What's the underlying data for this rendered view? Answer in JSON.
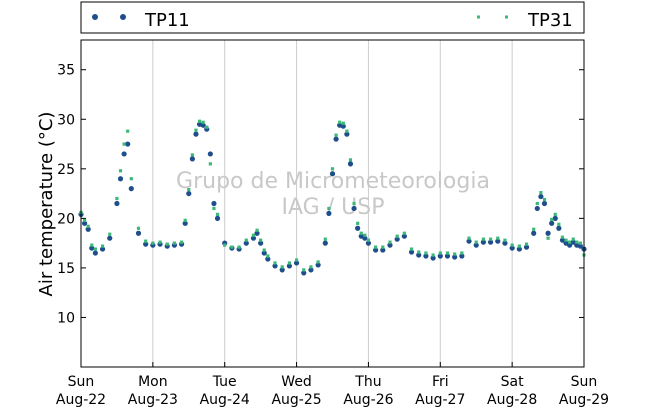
{
  "chart_data": {
    "type": "scatter",
    "title": "",
    "xlabel": "",
    "ylabel": "Air temperature (°C)",
    "watermark": [
      "Grupo de Micrometeorologia",
      "IAG / USP"
    ],
    "xlim": [
      0,
      7
    ],
    "ylim": [
      5,
      38
    ],
    "yticks": [
      10,
      15,
      20,
      25,
      30,
      35
    ],
    "grid": "x",
    "legend_position": "top",
    "xticks": [
      {
        "day": "Sun",
        "date": "Aug-22",
        "x": 0
      },
      {
        "day": "Mon",
        "date": "Aug-23",
        "x": 1
      },
      {
        "day": "Tue",
        "date": "Aug-24",
        "x": 2
      },
      {
        "day": "Wed",
        "date": "Aug-25",
        "x": 3
      },
      {
        "day": "Thu",
        "date": "Aug-26",
        "x": 4
      },
      {
        "day": "Fri",
        "date": "Aug-27",
        "x": 5
      },
      {
        "day": "Sat",
        "date": "Aug-28",
        "x": 6
      },
      {
        "day": "Sun",
        "date": "Aug-29",
        "x": 7
      }
    ],
    "series": [
      {
        "name": "TP11",
        "color": "#1f4e8c",
        "marker": "circle",
        "x": [
          0,
          0.05,
          0.1,
          0.15,
          0.2,
          0.3,
          0.4,
          0.5,
          0.55,
          0.6,
          0.65,
          0.7,
          0.8,
          0.9,
          1.0,
          1.1,
          1.2,
          1.3,
          1.4,
          1.45,
          1.5,
          1.55,
          1.6,
          1.65,
          1.7,
          1.75,
          1.8,
          1.85,
          1.9,
          2.0,
          2.1,
          2.2,
          2.3,
          2.4,
          2.45,
          2.5,
          2.55,
          2.6,
          2.7,
          2.8,
          2.9,
          3.0,
          3.1,
          3.2,
          3.3,
          3.4,
          3.45,
          3.5,
          3.55,
          3.6,
          3.65,
          3.7,
          3.75,
          3.8,
          3.85,
          3.9,
          3.95,
          4.0,
          4.1,
          4.2,
          4.3,
          4.4,
          4.5,
          4.6,
          4.7,
          4.8,
          4.9,
          5.0,
          5.1,
          5.2,
          5.3,
          5.4,
          5.5,
          5.6,
          5.7,
          5.8,
          5.9,
          6.0,
          6.1,
          6.2,
          6.3,
          6.35,
          6.4,
          6.45,
          6.5,
          6.55,
          6.6,
          6.65,
          6.7,
          6.75,
          6.8,
          6.85,
          6.9,
          6.95,
          7.0
        ],
        "y": [
          20.4,
          19.5,
          18.9,
          17.0,
          16.5,
          16.9,
          18.0,
          21.5,
          24.0,
          26.5,
          27.5,
          23.0,
          18.5,
          17.4,
          17.3,
          17.4,
          17.2,
          17.3,
          17.4,
          19.5,
          22.5,
          26.0,
          28.5,
          29.5,
          29.4,
          29.0,
          26.5,
          21.5,
          20.0,
          17.5,
          17.0,
          16.9,
          17.5,
          18.0,
          18.5,
          17.5,
          16.5,
          15.9,
          15.2,
          14.8,
          15.2,
          15.5,
          14.5,
          14.8,
          15.3,
          17.5,
          20.5,
          24.5,
          28.0,
          29.4,
          29.3,
          28.5,
          25.5,
          21.0,
          19.0,
          18.2,
          18.0,
          17.5,
          16.8,
          16.8,
          17.3,
          17.9,
          18.2,
          16.6,
          16.3,
          16.2,
          16.0,
          16.2,
          16.2,
          16.1,
          16.2,
          17.7,
          17.3,
          17.6,
          17.6,
          17.7,
          17.5,
          17.0,
          16.9,
          17.1,
          18.5,
          21.0,
          22.2,
          21.5,
          18.5,
          19.5,
          20.0,
          19.0,
          17.8,
          17.5,
          17.3,
          17.6,
          17.3,
          17.2,
          16.9
        ]
      },
      {
        "name": "TP31",
        "color": "#3cb878",
        "marker": "square",
        "x": [
          0,
          0.05,
          0.1,
          0.15,
          0.2,
          0.3,
          0.4,
          0.5,
          0.55,
          0.6,
          0.65,
          0.7,
          0.8,
          0.9,
          1.0,
          1.1,
          1.2,
          1.3,
          1.4,
          1.45,
          1.5,
          1.55,
          1.6,
          1.65,
          1.7,
          1.75,
          1.8,
          1.85,
          1.9,
          2.0,
          2.1,
          2.2,
          2.3,
          2.4,
          2.45,
          2.5,
          2.55,
          2.6,
          2.7,
          2.8,
          2.9,
          3.0,
          3.1,
          3.2,
          3.3,
          3.4,
          3.45,
          3.5,
          3.55,
          3.6,
          3.65,
          3.7,
          3.75,
          3.8,
          3.85,
          3.9,
          3.95,
          4.0,
          4.1,
          4.2,
          4.3,
          4.4,
          4.5,
          4.6,
          4.7,
          4.8,
          4.9,
          5.0,
          5.1,
          5.2,
          5.3,
          5.4,
          5.5,
          5.6,
          5.7,
          5.8,
          5.9,
          6.0,
          6.1,
          6.2,
          6.3,
          6.35,
          6.4,
          6.45,
          6.5,
          6.55,
          6.6,
          6.65,
          6.7,
          6.75,
          6.8,
          6.85,
          6.9,
          6.95,
          7.0
        ],
        "y": [
          20.6,
          19.8,
          19.2,
          17.3,
          16.9,
          17.2,
          18.4,
          22.0,
          24.8,
          27.5,
          28.8,
          24.0,
          19.0,
          17.7,
          17.5,
          17.6,
          17.4,
          17.5,
          17.6,
          19.8,
          22.9,
          26.4,
          28.9,
          29.8,
          29.7,
          29.2,
          25.5,
          21.0,
          20.4,
          17.3,
          17.1,
          17.1,
          17.8,
          18.3,
          18.8,
          17.8,
          16.8,
          16.2,
          15.5,
          15.1,
          15.5,
          15.8,
          14.8,
          15.1,
          15.6,
          17.9,
          21.0,
          25.0,
          28.4,
          29.7,
          29.6,
          28.8,
          25.9,
          21.5,
          19.5,
          18.5,
          18.3,
          17.8,
          17.1,
          17.1,
          17.6,
          18.2,
          18.5,
          16.9,
          16.6,
          16.5,
          16.3,
          16.5,
          16.5,
          16.4,
          16.5,
          18.0,
          17.6,
          17.9,
          17.9,
          18.0,
          17.8,
          17.3,
          17.2,
          17.4,
          18.9,
          21.5,
          22.6,
          21.9,
          18.0,
          19.9,
          20.4,
          19.4,
          18.1,
          17.8,
          17.6,
          17.9,
          17.6,
          17.5,
          16.3
        ]
      }
    ]
  }
}
